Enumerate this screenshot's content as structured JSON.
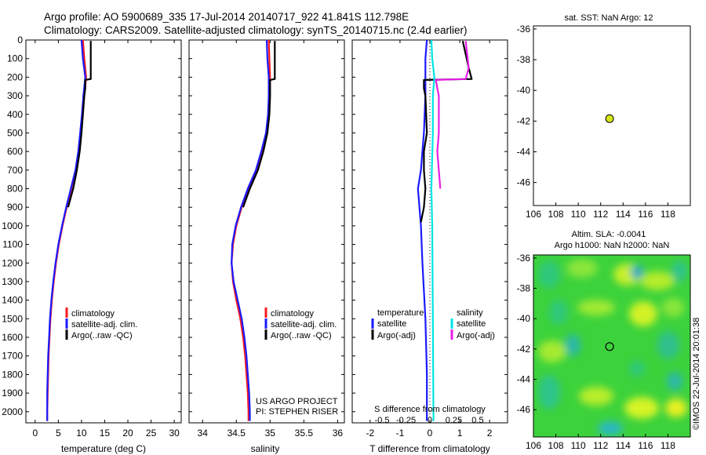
{
  "header": {
    "line1": "Argo profile: AO 5900689_335 17-Jul-2014 20140717_922 41.841S 112.798E",
    "line2": "Climatology: CARS2009. Satellite-adjusted climatology: synTS_20140715.nc (2.4d earlier)"
  },
  "colors": {
    "climatology": "#ff1a1a",
    "satellite": "#1a1aff",
    "argo": "#000000",
    "sal_satellite": "#00e5e5",
    "sal_argo": "#e61ee6",
    "float_dot": "#d4e619"
  },
  "chart_data": [
    {
      "type": "line",
      "id": "temperature_profile",
      "xlabel": "temperature (deg C)",
      "ylabel": "",
      "xlim": [
        -2,
        31.5
      ],
      "ylim": [
        2060,
        0
      ],
      "y_reversed": true,
      "xticks": [
        0,
        5,
        10,
        15,
        20,
        25,
        30
      ],
      "yticks": [
        0,
        100,
        200,
        300,
        400,
        500,
        600,
        700,
        800,
        900,
        1000,
        1100,
        1200,
        1300,
        1400,
        1500,
        1600,
        1700,
        1800,
        1900,
        2000
      ],
      "legend": {
        "placement": "lower-middle",
        "entries": [
          "climatology",
          "satellite-adj. clim.",
          "Argo(..raw -QC)"
        ]
      },
      "series": [
        {
          "name": "climatology",
          "color_key": "climatology",
          "points": [
            [
              10.3,
              0
            ],
            [
              10.6,
              100
            ],
            [
              11.0,
              200
            ],
            [
              10.8,
              250
            ],
            [
              10.5,
              300
            ],
            [
              10.2,
              400
            ],
            [
              9.8,
              500
            ],
            [
              9.4,
              600
            ],
            [
              8.8,
              700
            ],
            [
              7.8,
              800
            ],
            [
              6.8,
              900
            ],
            [
              5.9,
              1000
            ],
            [
              5.1,
              1100
            ],
            [
              4.5,
              1200
            ],
            [
              4.0,
              1300
            ],
            [
              3.6,
              1400
            ],
            [
              3.3,
              1500
            ],
            [
              3.1,
              1600
            ],
            [
              2.9,
              1700
            ],
            [
              2.8,
              1800
            ],
            [
              2.7,
              1900
            ],
            [
              2.6,
              2000
            ],
            [
              2.6,
              2050
            ]
          ]
        },
        {
          "name": "satellite-adj. clim.",
          "color_key": "satellite",
          "points": [
            [
              10.0,
              0
            ],
            [
              10.3,
              100
            ],
            [
              10.8,
              200
            ],
            [
              10.6,
              250
            ],
            [
              10.4,
              300
            ],
            [
              10.1,
              400
            ],
            [
              9.7,
              500
            ],
            [
              9.3,
              600
            ],
            [
              8.7,
              700
            ],
            [
              7.7,
              800
            ],
            [
              6.7,
              900
            ],
            [
              5.8,
              1000
            ],
            [
              5.0,
              1100
            ],
            [
              4.4,
              1200
            ],
            [
              3.9,
              1300
            ],
            [
              3.5,
              1400
            ],
            [
              3.2,
              1500
            ],
            [
              3.0,
              1600
            ],
            [
              2.8,
              1700
            ],
            [
              2.7,
              1800
            ],
            [
              2.6,
              1900
            ],
            [
              2.6,
              2000
            ],
            [
              2.6,
              2050
            ]
          ]
        },
        {
          "name": "Argo(..raw -QC)",
          "color_key": "argo",
          "points": [
            [
              12.0,
              5
            ],
            [
              12.0,
              210
            ],
            [
              10.8,
              215
            ],
            [
              10.8,
              260
            ],
            [
              10.6,
              300
            ],
            [
              10.3,
              400
            ],
            [
              10.0,
              500
            ],
            [
              9.6,
              600
            ],
            [
              9.0,
              700
            ],
            [
              8.2,
              800
            ],
            [
              7.1,
              900
            ]
          ]
        }
      ]
    },
    {
      "type": "line",
      "id": "salinity_profile",
      "xlabel": "salinity",
      "ylabel": "",
      "xlim": [
        33.8,
        36.1
      ],
      "ylim": [
        2060,
        0
      ],
      "y_reversed": true,
      "xticks": [
        34,
        34.5,
        35,
        35.5,
        36
      ],
      "legend": {
        "placement": "lower-middle",
        "entries": [
          "climatology",
          "satellite-adj. clim.",
          "Argo(..raw -QC)"
        ]
      },
      "annotations": [
        "US ARGO PROJECT",
        "PI: STEPHEN RISER"
      ],
      "series": [
        {
          "name": "climatology",
          "color_key": "climatology",
          "points": [
            [
              34.98,
              0
            ],
            [
              34.99,
              100
            ],
            [
              35.0,
              200
            ],
            [
              34.99,
              300
            ],
            [
              34.98,
              400
            ],
            [
              34.95,
              500
            ],
            [
              34.88,
              600
            ],
            [
              34.8,
              700
            ],
            [
              34.68,
              800
            ],
            [
              34.58,
              900
            ],
            [
              34.5,
              1000
            ],
            [
              34.45,
              1100
            ],
            [
              34.43,
              1200
            ],
            [
              34.45,
              1300
            ],
            [
              34.5,
              1400
            ],
            [
              34.56,
              1500
            ],
            [
              34.6,
              1600
            ],
            [
              34.63,
              1700
            ],
            [
              34.65,
              1800
            ],
            [
              34.67,
              1900
            ],
            [
              34.68,
              2000
            ],
            [
              34.68,
              2050
            ]
          ]
        },
        {
          "name": "satellite-adj. clim.",
          "color_key": "satellite",
          "points": [
            [
              34.95,
              0
            ],
            [
              34.96,
              100
            ],
            [
              34.98,
              200
            ],
            [
              34.98,
              300
            ],
            [
              34.97,
              400
            ],
            [
              34.94,
              500
            ],
            [
              34.87,
              600
            ],
            [
              34.79,
              700
            ],
            [
              34.67,
              800
            ],
            [
              34.57,
              900
            ],
            [
              34.49,
              1000
            ],
            [
              34.44,
              1100
            ],
            [
              34.43,
              1200
            ],
            [
              34.46,
              1300
            ],
            [
              34.52,
              1400
            ],
            [
              34.58,
              1500
            ],
            [
              34.62,
              1600
            ],
            [
              34.65,
              1700
            ],
            [
              34.67,
              1800
            ],
            [
              34.69,
              1900
            ],
            [
              34.7,
              2000
            ],
            [
              34.7,
              2050
            ]
          ]
        },
        {
          "name": "Argo(..raw -QC)",
          "color_key": "argo",
          "points": [
            [
              35.07,
              5
            ],
            [
              35.07,
              210
            ],
            [
              35.0,
              215
            ],
            [
              35.0,
              260
            ],
            [
              35.0,
              300
            ],
            [
              34.99,
              400
            ],
            [
              34.96,
              500
            ],
            [
              34.9,
              600
            ],
            [
              34.82,
              700
            ],
            [
              34.7,
              800
            ],
            [
              34.6,
              900
            ]
          ]
        }
      ]
    },
    {
      "type": "line",
      "id": "difference_profile",
      "xlabel": "T difference from climatology",
      "top_xlabel": "S difference from climatology",
      "xlim": [
        -2.6,
        2.6
      ],
      "ylim": [
        2060,
        0
      ],
      "y_reversed": true,
      "xticks": [
        -2,
        -1,
        0,
        1,
        2
      ],
      "top_xticks": [
        "-0.5",
        "-0.25",
        "0",
        "0.25",
        "0.5"
      ],
      "legend": {
        "placement": "lower",
        "temperature_title": "temperature",
        "salinity_title": "salinity",
        "entries": [
          "satellite",
          "Argo(-adj)",
          "satellite",
          "Argo(-adj)"
        ]
      },
      "series": [
        {
          "name": "temperature satellite",
          "color_key": "satellite",
          "points": [
            [
              -0.1,
              0
            ],
            [
              -0.15,
              100
            ],
            [
              -0.15,
              200
            ],
            [
              -0.15,
              300
            ],
            [
              -0.2,
              500
            ],
            [
              -0.3,
              700
            ],
            [
              -0.4,
              800
            ],
            [
              -0.35,
              900
            ],
            [
              -0.3,
              1000
            ],
            [
              -0.25,
              1200
            ],
            [
              -0.15,
              1500
            ],
            [
              -0.1,
              1800
            ],
            [
              -0.1,
              2050
            ]
          ]
        },
        {
          "name": "temperature Argo(-adj)",
          "color_key": "argo",
          "points": [
            [
              1.1,
              5
            ],
            [
              1.3,
              150
            ],
            [
              1.4,
              210
            ],
            [
              -0.2,
              215
            ],
            [
              -0.2,
              260
            ],
            [
              -0.15,
              300
            ],
            [
              -0.1,
              500
            ],
            [
              -0.2,
              600
            ],
            [
              -0.2,
              700
            ],
            [
              -0.15,
              800
            ],
            [
              -0.2,
              900
            ],
            [
              -0.3,
              980
            ]
          ]
        },
        {
          "name": "salinity satellite",
          "color_key": "sal_satellite",
          "points": [
            [
              0.05,
              0
            ],
            [
              0.08,
              100
            ],
            [
              0.15,
              200
            ],
            [
              0.1,
              300
            ],
            [
              0.1,
              500
            ],
            [
              0.05,
              800
            ],
            [
              0.08,
              1000
            ],
            [
              0.1,
              1500
            ],
            [
              0.12,
              2050
            ]
          ]
        },
        {
          "name": "salinity Argo(-adj)",
          "color_key": "sal_argo",
          "points": [
            [
              1.2,
              5
            ],
            [
              1.3,
              150
            ],
            [
              1.2,
              210
            ],
            [
              0.2,
              215
            ],
            [
              0.25,
              260
            ],
            [
              0.3,
              300
            ],
            [
              0.3,
              500
            ],
            [
              0.25,
              600
            ],
            [
              0.3,
              700
            ],
            [
              0.35,
              800
            ]
          ]
        }
      ]
    },
    {
      "type": "scatter",
      "id": "sat_sst_map",
      "title": "sat. SST: NaN Argo: 12",
      "xlim": [
        106,
        120
      ],
      "ylim": [
        -47.5,
        -35.8
      ],
      "xticks": [
        106,
        108,
        110,
        112,
        114,
        116,
        118
      ],
      "yticks": [
        -36,
        -38,
        -40,
        -42,
        -44,
        -46
      ],
      "points": [
        {
          "x": 112.798,
          "y": -41.841,
          "color_key": "float_dot"
        }
      ]
    },
    {
      "type": "heatmap",
      "id": "altimetry_map",
      "title_line1": "Altim. SLA: -0.0041",
      "title_line2": "Argo h1000: NaN h2000: NaN",
      "xlim": [
        106,
        120
      ],
      "ylim": [
        -47.8,
        -35.8
      ],
      "xticks": [
        106,
        108,
        110,
        112,
        114,
        116,
        118
      ],
      "yticks": [
        -36,
        -38,
        -40,
        -42,
        -44,
        -46
      ],
      "marker": {
        "x": 112.798,
        "y": -41.841
      }
    }
  ],
  "footer": {
    "credit": "©IMOS 22-Jul-2014 20:01:38"
  }
}
